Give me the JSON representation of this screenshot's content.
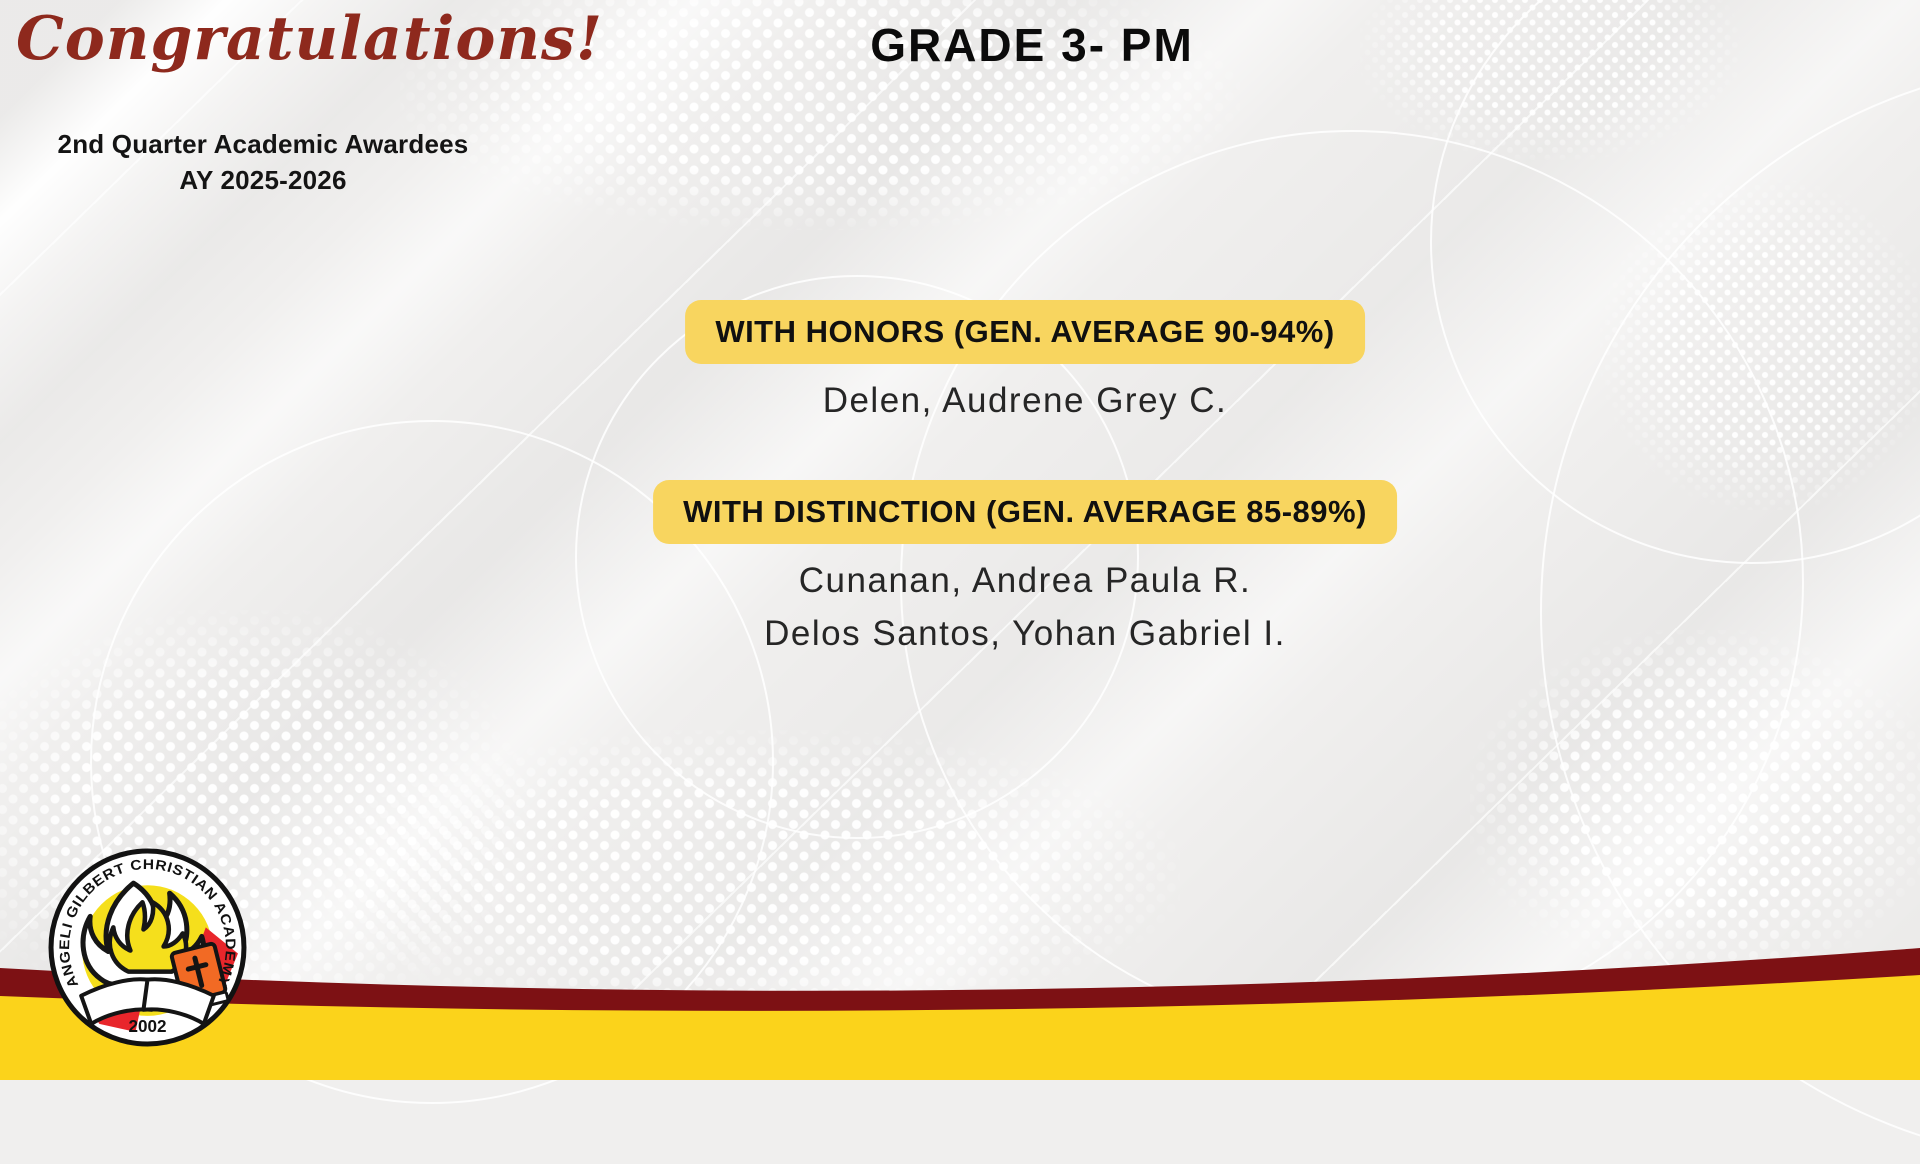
{
  "header": {
    "congrats": "Congratulations!",
    "subtitle_line1": "2nd Quarter Academic Awardees",
    "subtitle_line2": "AY 2025-2026"
  },
  "section_title": "GRADE 3- PM",
  "awards": [
    {
      "category": "WITH HONORS (GEN. AVERAGE 90-94%)",
      "names": [
        "Delen, Audrene Grey C."
      ]
    },
    {
      "category": "WITH DISTINCTION (GEN. AVERAGE 85-89%)",
      "names": [
        "Cunanan, Andrea Paula R.",
        "Delos Santos, Yohan Gabriel I."
      ]
    }
  ],
  "logo": {
    "school_name": "ANGELI GILBERT CHRISTIAN ACADEMY",
    "year": "2002"
  },
  "colors": {
    "script_red": "#8E291D",
    "highlight_yellow": "#F8D55F",
    "footer_maroon": "#7D1114",
    "footer_gold": "#FBD31B",
    "logo_yellow": "#F5DF1C",
    "logo_orange": "#F26A24",
    "logo_red": "#E8262B"
  }
}
